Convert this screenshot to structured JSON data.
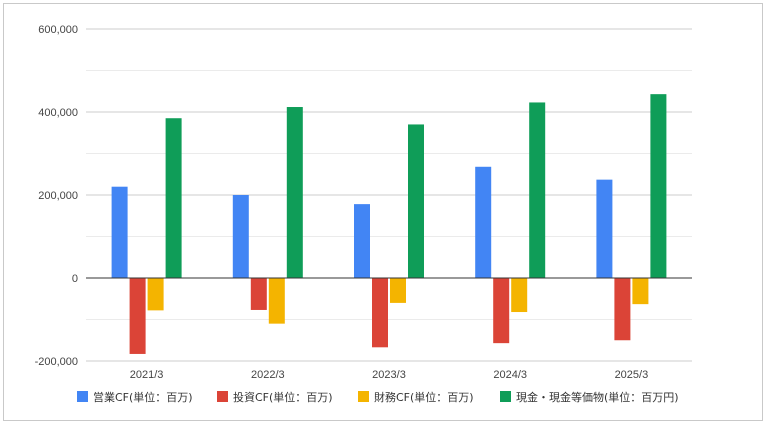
{
  "chart_data": {
    "type": "bar",
    "categories": [
      "2021/3",
      "2022/3",
      "2023/3",
      "2024/3",
      "2025/3"
    ],
    "series": [
      {
        "name": "営業CF(単位：百万)",
        "color": "#4285f4",
        "values": [
          220000,
          200000,
          178000,
          268000,
          237000
        ]
      },
      {
        "name": "投資CF(単位：百万)",
        "color": "#db4437",
        "values": [
          -183000,
          -77000,
          -167000,
          -157000,
          -150000
        ]
      },
      {
        "name": "財務CF(単位：百万)",
        "color": "#f4b400",
        "values": [
          -78000,
          -110000,
          -60000,
          -82000,
          -63000
        ]
      },
      {
        "name": "現金・現金等価物(単位：百万円)",
        "color": "#0f9d58",
        "values": [
          385000,
          412000,
          370000,
          423000,
          443000
        ]
      }
    ],
    "ylim": [
      -200000,
      600000
    ],
    "yticks": [
      -200000,
      0,
      200000,
      400000,
      600000
    ],
    "ytick_labels": [
      "-200,000",
      "0",
      "200,000",
      "400,000",
      "600,000"
    ],
    "grid": true,
    "legend_position": "bottom"
  }
}
